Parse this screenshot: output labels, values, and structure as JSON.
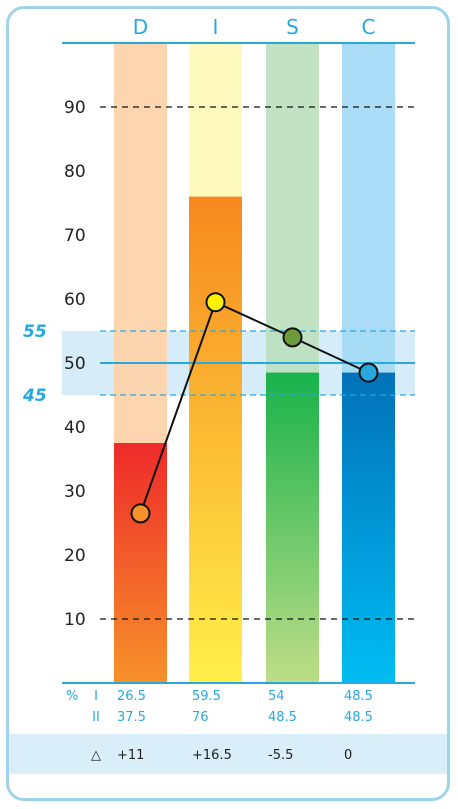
{
  "chart_data": {
    "type": "bar",
    "categories": [
      "D",
      "I",
      "S",
      "C"
    ],
    "series": [
      {
        "values": [
          37.5,
          76,
          48.5,
          48.5
        ]
      },
      {
        "values": [
          26.5,
          59.5,
          54,
          48.5
        ]
      }
    ],
    "ylim": [
      0,
      100
    ],
    "yticks": [
      10,
      20,
      30,
      40,
      50,
      60,
      70,
      80,
      90
    ],
    "band": {
      "low": 45,
      "high": 55,
      "low_label": "45",
      "high_label": "55"
    },
    "grid": "dashed lines at 10 and 90, solid midline at 50",
    "colors": {
      "accent": "#29a8e0",
      "D": {
        "light": "#fdd3a8",
        "top": "#ee2a2a",
        "bottom": "#f7922a",
        "marker": "#f7922a"
      },
      "I": {
        "light": "#fef8b7",
        "top": "#f7881f",
        "bottom": "#fff04a",
        "marker": "#fff200"
      },
      "S": {
        "light": "#bce0be",
        "top": "#18b24b",
        "bottom": "#bedd88",
        "marker": "#6e9a3c"
      },
      "C": {
        "light": "#a3daf4",
        "top": "#0271b9",
        "bottom": "#00bdf2",
        "marker": "#29a8e0"
      }
    }
  },
  "table": {
    "percent_symbol": "%",
    "row1_label": "I",
    "row2_label": "II",
    "row1": [
      "26.5",
      "59.5",
      "54",
      "48.5"
    ],
    "row2": [
      "37.5",
      "76",
      "48.5",
      "48.5"
    ],
    "delta_symbol": "△",
    "delta": [
      "+11",
      "+16.5",
      "-5.5",
      "0"
    ]
  }
}
